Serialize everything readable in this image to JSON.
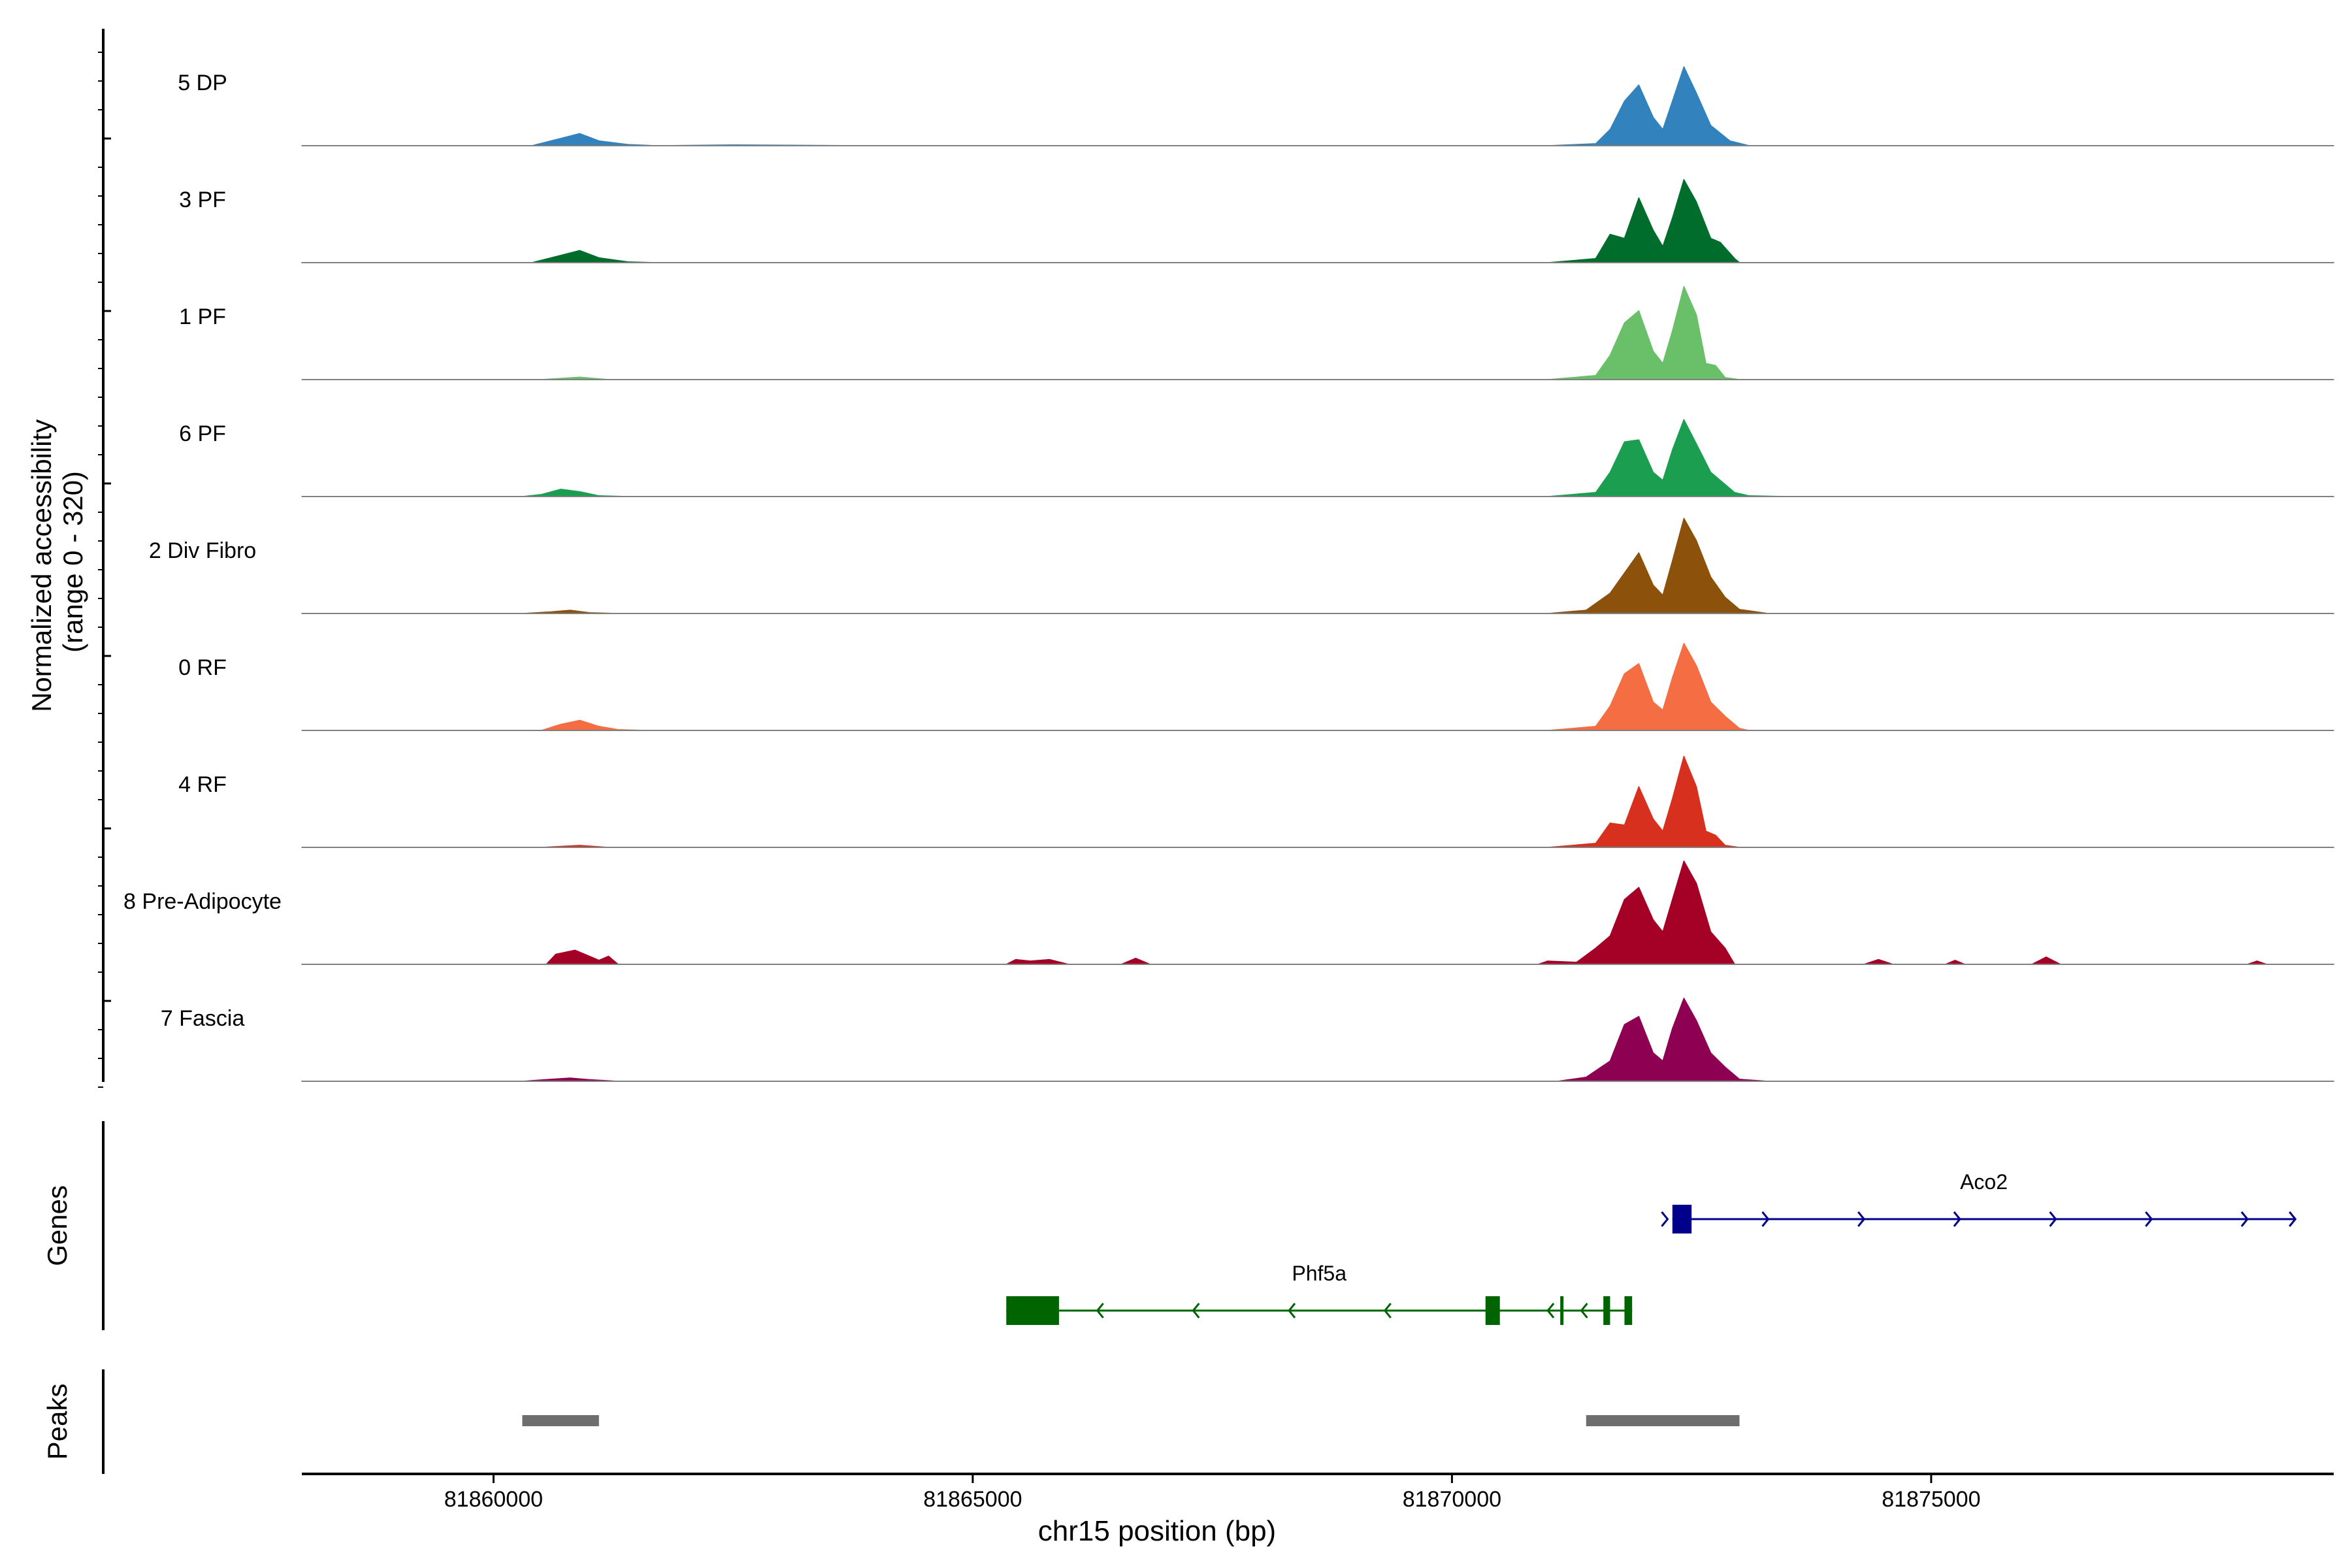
{
  "chart_data": {
    "type": "area",
    "title": "",
    "region": {
      "chromosome": "chr15",
      "start": 81858000,
      "end": 81879200
    },
    "xlabel": "chr15 position (bp)",
    "x_ticks": [
      81860000,
      81865000,
      81870000,
      81875000
    ],
    "x_tick_labels": [
      "81860000",
      "81865000",
      "81870000",
      "81875000"
    ],
    "y_axis": {
      "label_line1": "Normalized accessibility",
      "label_line2": "(range 0 - 320)",
      "range": [
        0,
        320
      ]
    },
    "series": [
      {
        "name": "5 DP",
        "color": "#3182bd",
        "points": [
          [
            81858000,
            0
          ],
          [
            81860400,
            0
          ],
          [
            81860700,
            18
          ],
          [
            81860900,
            30
          ],
          [
            81861100,
            12
          ],
          [
            81861400,
            3
          ],
          [
            81861700,
            0
          ],
          [
            81862500,
            2
          ],
          [
            81864000,
            0
          ],
          [
            81871000,
            0
          ],
          [
            81871500,
            5
          ],
          [
            81871650,
            40
          ],
          [
            81871800,
            110
          ],
          [
            81871950,
            150
          ],
          [
            81872100,
            70
          ],
          [
            81872200,
            40
          ],
          [
            81872300,
            110
          ],
          [
            81872420,
            195
          ],
          [
            81872550,
            130
          ],
          [
            81872700,
            50
          ],
          [
            81872900,
            12
          ],
          [
            81873100,
            0
          ],
          [
            81879200,
            0
          ]
        ]
      },
      {
        "name": "3 PF",
        "color": "#006d2c",
        "points": [
          [
            81858000,
            0
          ],
          [
            81860400,
            0
          ],
          [
            81860700,
            18
          ],
          [
            81860900,
            30
          ],
          [
            81861100,
            12
          ],
          [
            81861400,
            2
          ],
          [
            81861700,
            0
          ],
          [
            81871000,
            0
          ],
          [
            81871500,
            10
          ],
          [
            81871650,
            70
          ],
          [
            81871800,
            60
          ],
          [
            81871950,
            160
          ],
          [
            81872100,
            80
          ],
          [
            81872200,
            40
          ],
          [
            81872300,
            110
          ],
          [
            81872420,
            205
          ],
          [
            81872550,
            150
          ],
          [
            81872700,
            60
          ],
          [
            81872800,
            50
          ],
          [
            81872950,
            10
          ],
          [
            81873000,
            0
          ],
          [
            81879200,
            0
          ]
        ]
      },
      {
        "name": "1 PF",
        "color": "#6abf69",
        "points": [
          [
            81858000,
            0
          ],
          [
            81860500,
            0
          ],
          [
            81860900,
            6
          ],
          [
            81861200,
            0
          ],
          [
            81871000,
            0
          ],
          [
            81871500,
            10
          ],
          [
            81871650,
            60
          ],
          [
            81871800,
            140
          ],
          [
            81871950,
            170
          ],
          [
            81872100,
            70
          ],
          [
            81872200,
            40
          ],
          [
            81872300,
            120
          ],
          [
            81872420,
            230
          ],
          [
            81872550,
            160
          ],
          [
            81872650,
            40
          ],
          [
            81872750,
            35
          ],
          [
            81872850,
            5
          ],
          [
            81873000,
            0
          ],
          [
            81879200,
            0
          ]
        ]
      },
      {
        "name": "6 PF",
        "color": "#1b9e50",
        "points": [
          [
            81858000,
            0
          ],
          [
            81860300,
            0
          ],
          [
            81860500,
            5
          ],
          [
            81860700,
            18
          ],
          [
            81860900,
            12
          ],
          [
            81861100,
            2
          ],
          [
            81861400,
            0
          ],
          [
            81871000,
            0
          ],
          [
            81871500,
            10
          ],
          [
            81871650,
            60
          ],
          [
            81871800,
            135
          ],
          [
            81871950,
            140
          ],
          [
            81872100,
            60
          ],
          [
            81872200,
            40
          ],
          [
            81872300,
            115
          ],
          [
            81872420,
            190
          ],
          [
            81872550,
            130
          ],
          [
            81872700,
            60
          ],
          [
            81872800,
            40
          ],
          [
            81872950,
            10
          ],
          [
            81873100,
            2
          ],
          [
            81873500,
            0
          ],
          [
            81879200,
            0
          ]
        ]
      },
      {
        "name": "2 Div Fibro",
        "color": "#8c510a",
        "points": [
          [
            81858000,
            0
          ],
          [
            81860300,
            0
          ],
          [
            81860600,
            4
          ],
          [
            81860800,
            8
          ],
          [
            81861000,
            2
          ],
          [
            81861300,
            0
          ],
          [
            81871000,
            0
          ],
          [
            81871400,
            8
          ],
          [
            81871650,
            50
          ],
          [
            81871800,
            100
          ],
          [
            81871950,
            150
          ],
          [
            81872100,
            70
          ],
          [
            81872200,
            45
          ],
          [
            81872300,
            130
          ],
          [
            81872420,
            235
          ],
          [
            81872550,
            180
          ],
          [
            81872700,
            90
          ],
          [
            81872850,
            40
          ],
          [
            81873000,
            10
          ],
          [
            81873300,
            0
          ],
          [
            81879200,
            0
          ]
        ]
      },
      {
        "name": "0 RF",
        "color": "#f46d43",
        "points": [
          [
            81858000,
            0
          ],
          [
            81860500,
            0
          ],
          [
            81860700,
            15
          ],
          [
            81860900,
            25
          ],
          [
            81861100,
            10
          ],
          [
            81861300,
            2
          ],
          [
            81861600,
            0
          ],
          [
            81871000,
            0
          ],
          [
            81871500,
            10
          ],
          [
            81871650,
            60
          ],
          [
            81871800,
            140
          ],
          [
            81871950,
            165
          ],
          [
            81872100,
            70
          ],
          [
            81872200,
            50
          ],
          [
            81872300,
            130
          ],
          [
            81872420,
            215
          ],
          [
            81872550,
            160
          ],
          [
            81872700,
            70
          ],
          [
            81872850,
            35
          ],
          [
            81873000,
            5
          ],
          [
            81873100,
            0
          ],
          [
            81879200,
            0
          ]
        ]
      },
      {
        "name": "4 RF",
        "color": "#d7301f",
        "points": [
          [
            81858000,
            0
          ],
          [
            81860500,
            0
          ],
          [
            81860900,
            5
          ],
          [
            81861200,
            0
          ],
          [
            81871000,
            0
          ],
          [
            81871500,
            10
          ],
          [
            81871650,
            60
          ],
          [
            81871800,
            55
          ],
          [
            81871950,
            150
          ],
          [
            81872100,
            70
          ],
          [
            81872200,
            40
          ],
          [
            81872300,
            120
          ],
          [
            81872420,
            225
          ],
          [
            81872550,
            150
          ],
          [
            81872650,
            40
          ],
          [
            81872750,
            30
          ],
          [
            81872850,
            5
          ],
          [
            81873000,
            0
          ],
          [
            81879200,
            0
          ]
        ]
      },
      {
        "name": "8 Pre-Adipocyte",
        "color": "#a50026",
        "points": [
          [
            81858000,
            0
          ],
          [
            81860550,
            0
          ],
          [
            81860650,
            25
          ],
          [
            81860850,
            35
          ],
          [
            81861000,
            20
          ],
          [
            81861100,
            10
          ],
          [
            81861200,
            20
          ],
          [
            81861300,
            0
          ],
          [
            81865350,
            0
          ],
          [
            81865450,
            12
          ],
          [
            81865600,
            8
          ],
          [
            81865800,
            12
          ],
          [
            81866000,
            0
          ],
          [
            81866550,
            0
          ],
          [
            81866700,
            15
          ],
          [
            81866850,
            0
          ],
          [
            81870900,
            0
          ],
          [
            81871000,
            8
          ],
          [
            81871300,
            5
          ],
          [
            81871500,
            40
          ],
          [
            81871650,
            70
          ],
          [
            81871800,
            160
          ],
          [
            81871950,
            190
          ],
          [
            81872100,
            110
          ],
          [
            81872200,
            80
          ],
          [
            81872300,
            160
          ],
          [
            81872420,
            255
          ],
          [
            81872550,
            200
          ],
          [
            81872700,
            80
          ],
          [
            81872850,
            40
          ],
          [
            81872950,
            0
          ],
          [
            81874300,
            0
          ],
          [
            81874450,
            12
          ],
          [
            81874600,
            0
          ],
          [
            81875150,
            0
          ],
          [
            81875250,
            10
          ],
          [
            81875350,
            0
          ],
          [
            81876050,
            0
          ],
          [
            81876200,
            18
          ],
          [
            81876350,
            0
          ],
          [
            81878300,
            0
          ],
          [
            81878400,
            8
          ],
          [
            81878500,
            0
          ],
          [
            81879200,
            0
          ]
        ]
      },
      {
        "name": "7 Fascia",
        "color": "#8e0152",
        "points": [
          [
            81858000,
            0
          ],
          [
            81860300,
            0
          ],
          [
            81860600,
            5
          ],
          [
            81860800,
            8
          ],
          [
            81861000,
            4
          ],
          [
            81861300,
            0
          ],
          [
            81871100,
            0
          ],
          [
            81871400,
            10
          ],
          [
            81871650,
            50
          ],
          [
            81871800,
            140
          ],
          [
            81871950,
            160
          ],
          [
            81872100,
            70
          ],
          [
            81872200,
            50
          ],
          [
            81872300,
            130
          ],
          [
            81872420,
            205
          ],
          [
            81872550,
            150
          ],
          [
            81872700,
            70
          ],
          [
            81872850,
            35
          ],
          [
            81873000,
            5
          ],
          [
            81873300,
            0
          ],
          [
            81879200,
            0
          ]
        ]
      }
    ],
    "genes": [
      {
        "name": "Aco2",
        "strand": "+",
        "color": "#00008b",
        "start": 81872300,
        "end": 81878800,
        "exons": [
          [
            81872300,
            81872500
          ]
        ],
        "arrows": [
          81872250,
          81873300,
          81874300,
          81875300,
          81876300,
          81877300,
          81878300,
          81878800
        ]
      },
      {
        "name": "Phf5a",
        "strand": "-",
        "color": "#006400",
        "start": 81865350,
        "end": 81871880,
        "exons": [
          [
            81865350,
            81865900
          ],
          [
            81870350,
            81870500
          ],
          [
            81871130,
            81871160
          ],
          [
            81871580,
            81871650
          ],
          [
            81871800,
            81871880
          ]
        ],
        "arrows": [
          81866300,
          81867300,
          81868300,
          81869300,
          81871000,
          81871350
        ]
      }
    ],
    "peaks": [
      [
        81860300,
        81861100
      ],
      [
        81871400,
        81873000
      ]
    ],
    "track_labels": {
      "genes": "Genes",
      "peaks": "Peaks"
    },
    "grid": false,
    "legend": "none"
  }
}
